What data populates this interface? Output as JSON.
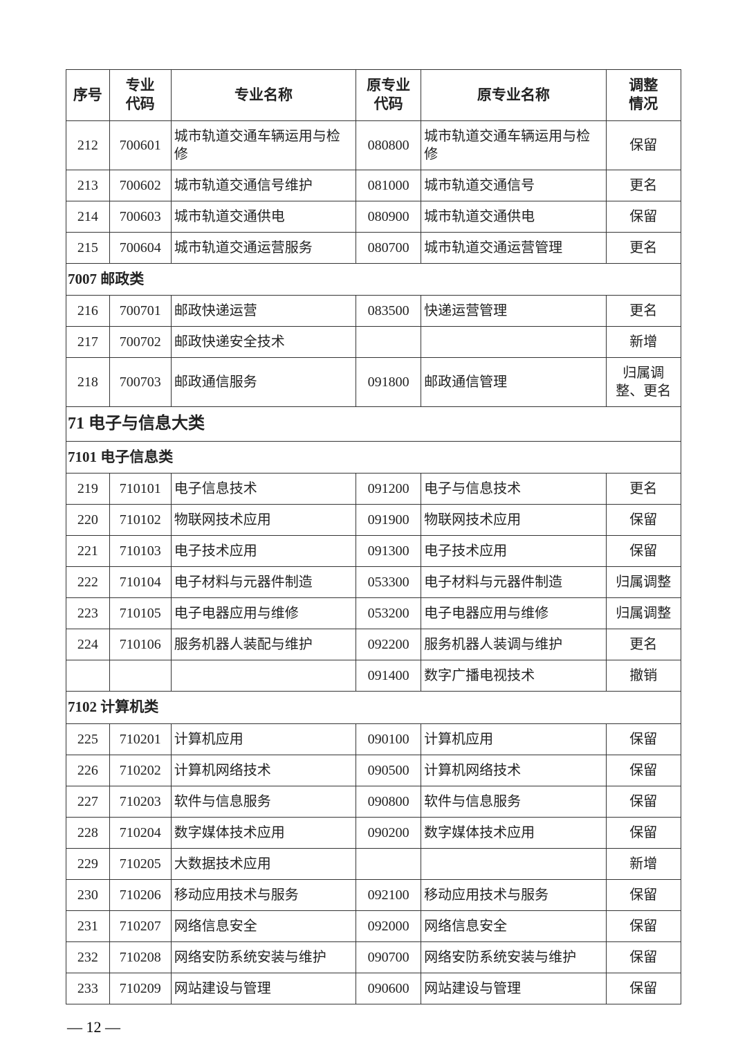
{
  "headers": {
    "seq": "序号",
    "code": "专业\n代码",
    "name": "专业名称",
    "ocode": "原专业\n代码",
    "oname": "原专业名称",
    "adj": "调整\n情况"
  },
  "sections": [
    {
      "type": "rows",
      "rows": [
        {
          "seq": "212",
          "code": "700601",
          "name": "城市轨道交通车辆运用与检修",
          "ocode": "080800",
          "oname": "城市轨道交通车辆运用与检修",
          "adj": "保留"
        },
        {
          "seq": "213",
          "code": "700602",
          "name": "城市轨道交通信号维护",
          "ocode": "081000",
          "oname": "城市轨道交通信号",
          "adj": "更名"
        },
        {
          "seq": "214",
          "code": "700603",
          "name": "城市轨道交通供电",
          "ocode": "080900",
          "oname": "城市轨道交通供电",
          "adj": "保留"
        },
        {
          "seq": "215",
          "code": "700604",
          "name": "城市轨道交通运营服务",
          "ocode": "080700",
          "oname": "城市轨道交通运营管理",
          "adj": "更名"
        }
      ]
    },
    {
      "type": "section",
      "label": "7007 邮政类"
    },
    {
      "type": "rows",
      "rows": [
        {
          "seq": "216",
          "code": "700701",
          "name": "邮政快递运营",
          "ocode": "083500",
          "oname": "快递运营管理",
          "adj": "更名"
        },
        {
          "seq": "217",
          "code": "700702",
          "name": "邮政快递安全技术",
          "ocode": "",
          "oname": "",
          "adj": "新增"
        },
        {
          "seq": "218",
          "code": "700703",
          "name": "邮政通信服务",
          "ocode": "091800",
          "oname": "邮政通信管理",
          "adj": "归属调整、更名"
        }
      ]
    },
    {
      "type": "major",
      "label": "71 电子与信息大类"
    },
    {
      "type": "section",
      "label": "7101 电子信息类"
    },
    {
      "type": "rows",
      "rows": [
        {
          "seq": "219",
          "code": "710101",
          "name": "电子信息技术",
          "ocode": "091200",
          "oname": "电子与信息技术",
          "adj": "更名"
        },
        {
          "seq": "220",
          "code": "710102",
          "name": "物联网技术应用",
          "ocode": "091900",
          "oname": "物联网技术应用",
          "adj": "保留"
        },
        {
          "seq": "221",
          "code": "710103",
          "name": "电子技术应用",
          "ocode": "091300",
          "oname": "电子技术应用",
          "adj": "保留"
        },
        {
          "seq": "222",
          "code": "710104",
          "name": "电子材料与元器件制造",
          "ocode": "053300",
          "oname": "电子材料与元器件制造",
          "adj": "归属调整"
        },
        {
          "seq": "223",
          "code": "710105",
          "name": "电子电器应用与维修",
          "ocode": "053200",
          "oname": "电子电器应用与维修",
          "adj": "归属调整"
        },
        {
          "seq": "224",
          "code": "710106",
          "name": "服务机器人装配与维护",
          "ocode": "092200",
          "oname": "服务机器人装调与维护",
          "adj": "更名"
        },
        {
          "seq": "",
          "code": "",
          "name": "",
          "ocode": "091400",
          "oname": "数字广播电视技术",
          "adj": "撤销"
        }
      ]
    },
    {
      "type": "section",
      "label": "7102 计算机类"
    },
    {
      "type": "rows",
      "rows": [
        {
          "seq": "225",
          "code": "710201",
          "name": "计算机应用",
          "ocode": "090100",
          "oname": "计算机应用",
          "adj": "保留"
        },
        {
          "seq": "226",
          "code": "710202",
          "name": "计算机网络技术",
          "ocode": "090500",
          "oname": "计算机网络技术",
          "adj": "保留"
        },
        {
          "seq": "227",
          "code": "710203",
          "name": "软件与信息服务",
          "ocode": "090800",
          "oname": "软件与信息服务",
          "adj": "保留"
        },
        {
          "seq": "228",
          "code": "710204",
          "name": "数字媒体技术应用",
          "ocode": "090200",
          "oname": "数字媒体技术应用",
          "adj": "保留"
        },
        {
          "seq": "229",
          "code": "710205",
          "name": "大数据技术应用",
          "ocode": "",
          "oname": "",
          "adj": "新增"
        },
        {
          "seq": "230",
          "code": "710206",
          "name": "移动应用技术与服务",
          "ocode": "092100",
          "oname": "移动应用技术与服务",
          "adj": "保留"
        },
        {
          "seq": "231",
          "code": "710207",
          "name": "网络信息安全",
          "ocode": "092000",
          "oname": "网络信息安全",
          "adj": "保留"
        },
        {
          "seq": "232",
          "code": "710208",
          "name": "网络安防系统安装与维护",
          "ocode": "090700",
          "oname": "网络安防系统安装与维护",
          "adj": "保留"
        },
        {
          "seq": "233",
          "code": "710209",
          "name": "网站建设与管理",
          "ocode": "090600",
          "oname": "网站建设与管理",
          "adj": "保留"
        }
      ]
    }
  ],
  "pagenum": "— 12 —"
}
